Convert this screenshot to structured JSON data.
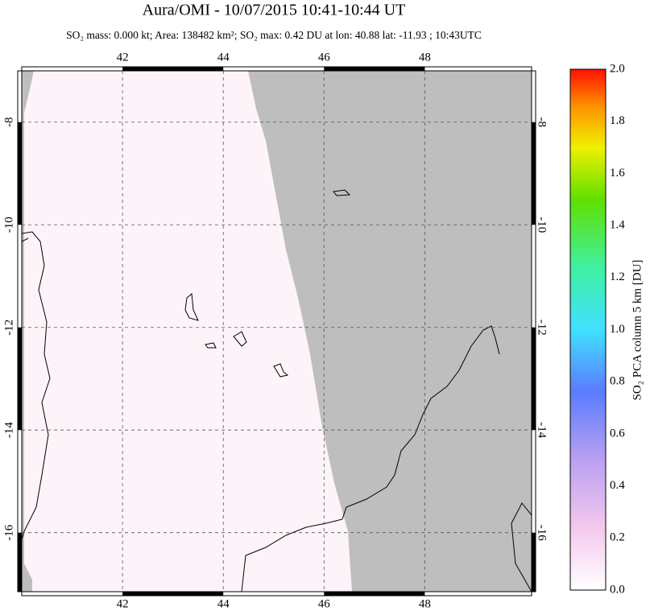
{
  "chart_data": {
    "type": "map",
    "title": "Aura/OMI - 10/07/2015 10:41-10:44 UT",
    "subtitle": "SO₂ mass: 0.000 kt; Area: 138482 km²; SO₂ max: 0.42 DU at lon: 40.88 lat: -11.93 ; 10:43UTC",
    "xlim": [
      40,
      50.12
    ],
    "xticks": [
      42,
      44,
      46,
      48
    ],
    "ylim": [
      -17.15,
      -7
    ],
    "yticks": [
      -8,
      -10,
      -12,
      -14,
      -16
    ],
    "grid": true,
    "colorbar": {
      "label": "SO₂ PCA column 5 km [DU]",
      "lim": [
        0,
        2
      ],
      "ticks": [
        {
          "value": 0,
          "label": "0.0"
        },
        {
          "value": 0.2,
          "label": "0.2"
        },
        {
          "value": 0.4,
          "label": "0.4"
        },
        {
          "value": 0.6,
          "label": "0.6"
        },
        {
          "value": 0.8,
          "label": "0.8"
        },
        {
          "value": 1,
          "label": "1.0"
        },
        {
          "value": 1.2,
          "label": "1.2"
        },
        {
          "value": 1.4,
          "label": "1.4"
        },
        {
          "value": 1.6,
          "label": "1.6"
        },
        {
          "value": 1.8,
          "label": "1.8"
        },
        {
          "value": 2,
          "label": "2.0"
        }
      ]
    }
  }
}
